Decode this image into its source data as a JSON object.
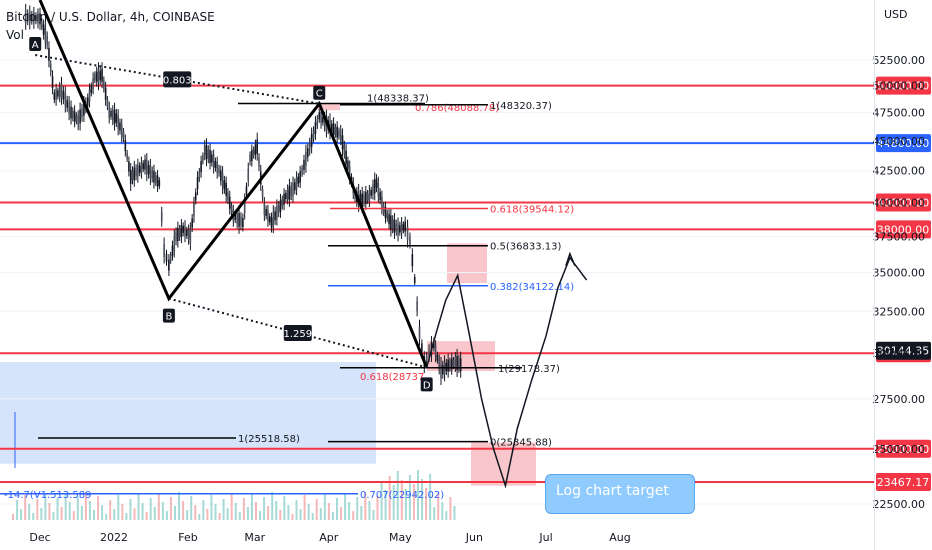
{
  "header": {
    "symbol": "Bitcoin / U.S. Dollar, 4h, COINBASE",
    "volume_label": "Vol",
    "currency": "USD"
  },
  "callout_text": "Log chart target",
  "chart_data": {
    "type": "line",
    "title": "Bitcoin / U.S. Dollar, 4h, COINBASE",
    "x_ticks": [
      "Dec",
      "2022",
      "Feb",
      "Mar",
      "Apr",
      "May",
      "Jun",
      "Jul",
      "Aug"
    ],
    "y_ticks": [
      22500,
      25000,
      27500,
      30000,
      32500,
      35000,
      37500,
      40000,
      42500,
      45000,
      47500,
      50000,
      52500
    ],
    "y_tick_labels": [
      "22500.00",
      "25000.00",
      "27500.00",
      "30000.00",
      "32500.00",
      "35000.00",
      "37500.00",
      "40000.00",
      "42500.00",
      "45000.00",
      "47500.00",
      "50000.00",
      "52500.00"
    ],
    "ylim": [
      21500,
      56500
    ],
    "price_path": {
      "dates": [
        "Nov 25",
        "Dec 1",
        "Dec 4",
        "Dec 7",
        "Dec 10",
        "Dec 14",
        "Dec 17",
        "Dec 21",
        "Dec 24",
        "Dec 27",
        "Dec 30",
        "Jan 2",
        "Jan 5",
        "Jan 8",
        "Jan 11",
        "Jan 14",
        "Jan 17",
        "Jan 20",
        "Jan 22",
        "Jan 24",
        "Jan 27",
        "Jan 30",
        "Feb 2",
        "Feb 5",
        "Feb 8",
        "Feb 11",
        "Feb 14",
        "Feb 17",
        "Feb 20",
        "Feb 24",
        "Feb 27",
        "Mar 2",
        "Mar 5",
        "Mar 8",
        "Mar 11",
        "Mar 14",
        "Mar 17",
        "Mar 20",
        "Mar 24",
        "Mar 28",
        "Mar 31",
        "Apr 3",
        "Apr 6",
        "Apr 9",
        "Apr 12",
        "Apr 15",
        "Apr 18",
        "Apr 21",
        "Apr 24",
        "Apr 27",
        "Apr 30",
        "May 3",
        "May 5",
        "May 7",
        "May 9",
        "May 11",
        "May 13",
        "May 15",
        "May 18",
        "May 21",
        "May 24",
        "May 27"
      ],
      "values": [
        57000,
        56800,
        54500,
        49000,
        49500,
        47500,
        46800,
        48500,
        50800,
        51000,
        47500,
        47000,
        45500,
        42000,
        42500,
        43000,
        42200,
        41500,
        36500,
        35500,
        37500,
        38000,
        37500,
        41500,
        44200,
        43500,
        42500,
        41000,
        39000,
        38500,
        43500,
        44500,
        39500,
        38500,
        39500,
        40500,
        41000,
        42000,
        44500,
        47200,
        46500,
        46000,
        45500,
        43000,
        40500,
        40200,
        40500,
        41500,
        39500,
        38500,
        38000,
        38200,
        37200,
        34500,
        31200,
        29500,
        30000,
        30500,
        29000,
        29300,
        29500,
        29300
      ]
    },
    "pattern_points": [
      {
        "label": "A",
        "date": "Nov 29",
        "value": 53000
      },
      {
        "label": "B",
        "date": "Jan 24",
        "value": 33300
      },
      {
        "label": "C",
        "date": "Mar 28",
        "value": 48300
      },
      {
        "label": "D",
        "date": "May 12",
        "value": 29200
      }
    ],
    "pattern_ratios": [
      "0.803",
      "1.259"
    ],
    "horizontal_levels": [
      {
        "value": 50000,
        "label": "50000.00",
        "color": "#f23645"
      },
      {
        "value": 44800,
        "label": "44800.00",
        "color": "#2962ff"
      },
      {
        "value": 40000,
        "label": "40000.00",
        "color": "#f23645"
      },
      {
        "value": 38000,
        "label": "38000.00",
        "color": "#f23645"
      },
      {
        "value": 30000,
        "label": "30000.00",
        "color": "#f23645"
      },
      {
        "value": 25000,
        "label": "25000.00",
        "color": "#f23645"
      },
      {
        "value": 23467.17,
        "label": "23467.17",
        "color": "#f23645"
      }
    ],
    "current_price": {
      "value": 30144.35,
      "label": "30144.35"
    },
    "fib_labels": [
      {
        "text": "1(48338.37)",
        "color": "#131722"
      },
      {
        "text": "0.786(48088.78)",
        "color": "#f23645"
      },
      {
        "text": "1(48320.37)",
        "color": "#131722"
      },
      {
        "text": "0.618(39544.12)",
        "color": "#f23645"
      },
      {
        "text": "0.5(36833.13)",
        "color": "#131722"
      },
      {
        "text": "0.382(34122.14)",
        "color": "#2962ff"
      },
      {
        "text": "0.618(28737",
        "color": "#f23645"
      },
      {
        "text": "1(29178.37)",
        "color": "#131722"
      },
      {
        "text": "1(25518.58)",
        "color": "#131722"
      },
      {
        "text": "0(25345.88)",
        "color": "#131722"
      },
      {
        "text": "0.707(22942.02)",
        "color": "#2962ff"
      },
      {
        "text": "-14.7(V1.513.589",
        "color": "#2962ff"
      }
    ],
    "projection": {
      "dates": [
        "May 12",
        "May 16",
        "May 20",
        "May 25",
        "May 30",
        "Jun 4",
        "Jun 9",
        "Jun 14",
        "Jun 19",
        "Jun 25",
        "Jul 1",
        "Jul 6",
        "Jul 11",
        "Jul 18"
      ],
      "values": [
        29200,
        31200,
        33200,
        34800,
        31000,
        27500,
        25000,
        23300,
        26000,
        28500,
        31000,
        34000,
        36000,
        34500
      ]
    },
    "colors": {
      "up": "#26a69a",
      "down": "#ef5350",
      "red_level": "#f23645",
      "blue_level": "#2962ff",
      "pattern": "#000000"
    }
  }
}
